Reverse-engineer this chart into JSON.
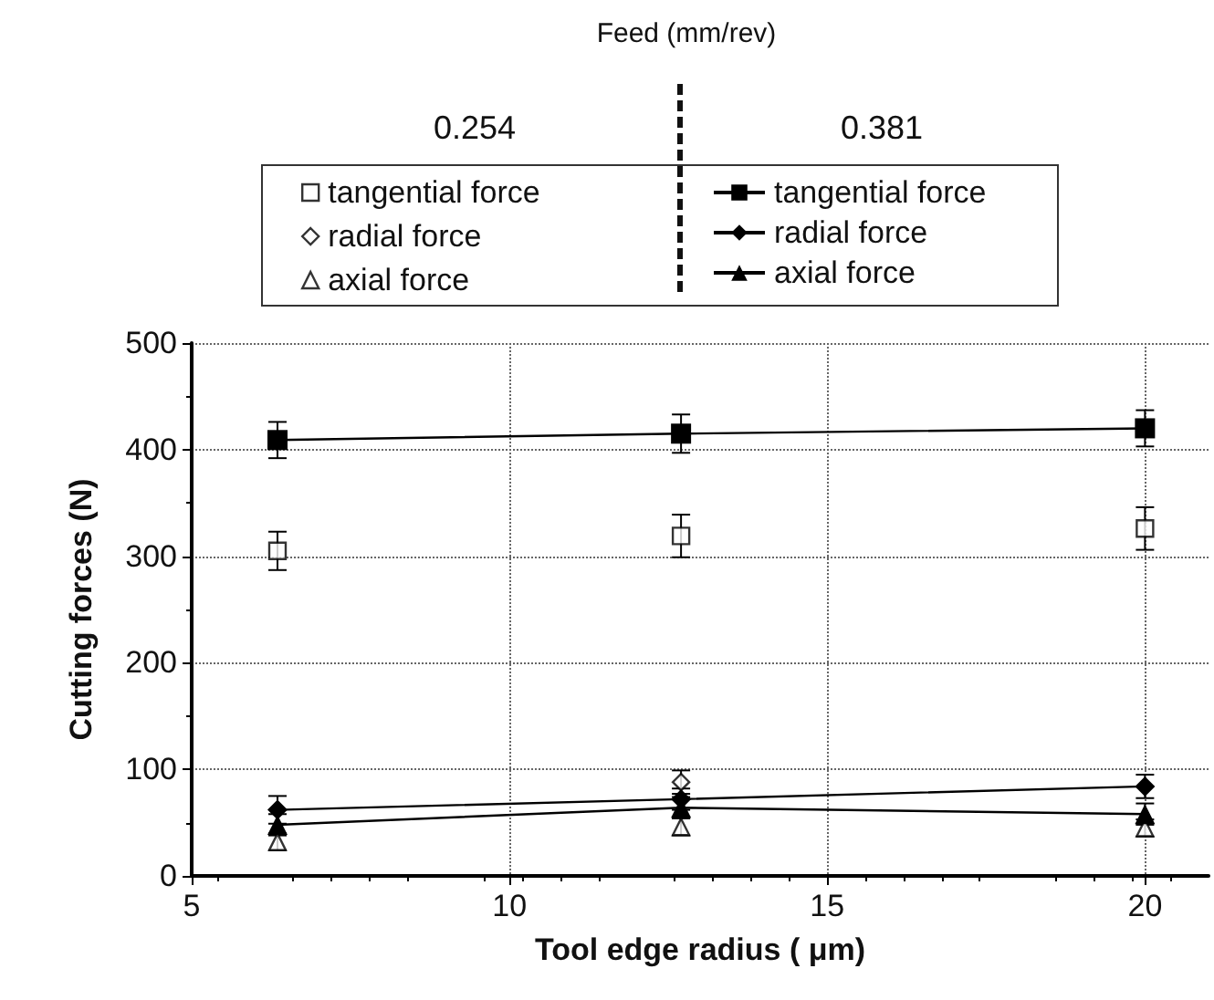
{
  "chart_data": {
    "type": "line",
    "xlabel": "Tool edge radius ( μm)",
    "ylabel": "Cutting forces (N)",
    "legend_title": "Feed (mm/rev)",
    "annotations": [
      "0.254",
      "0.381"
    ],
    "x": [
      6.35,
      12.7,
      20
    ],
    "xlim": [
      5,
      21
    ],
    "xticks": [
      5,
      10,
      15,
      20
    ],
    "ylim": [
      0,
      500
    ],
    "yticks": [
      0,
      100,
      200,
      300,
      400,
      500
    ],
    "grid": true,
    "legend": "top",
    "series": [
      {
        "name": "tangential force",
        "type": "scatter",
        "marker": "square",
        "color": "#000000",
        "values": [
          305,
          319,
          326
        ],
        "errors": [
          18,
          20,
          20
        ]
      },
      {
        "name": "radial force",
        "type": "scatter",
        "marker": "diamond",
        "color": "#000000",
        "values": [
          null,
          88,
          null
        ],
        "errors": [
          null,
          11,
          null
        ]
      },
      {
        "name": "axial force",
        "type": "scatter",
        "marker": "triangle",
        "color": "#000000",
        "values": [
          32,
          46,
          45
        ],
        "errors": [
          8,
          8,
          8
        ]
      },
      {
        "name": "tangential force",
        "type": "line",
        "marker": "square",
        "color": "#000000",
        "values": [
          409,
          415,
          420
        ],
        "errors": [
          17,
          18,
          17
        ]
      },
      {
        "name": "radial force",
        "type": "line",
        "marker": "diamond",
        "color": "#000000",
        "values": [
          62,
          72,
          84
        ],
        "errors": [
          13,
          10,
          11
        ]
      },
      {
        "name": "axial force",
        "type": "line",
        "marker": "triangle",
        "color": "#000000",
        "values": [
          48,
          64,
          58
        ],
        "errors": [
          10,
          10,
          10
        ]
      }
    ]
  }
}
